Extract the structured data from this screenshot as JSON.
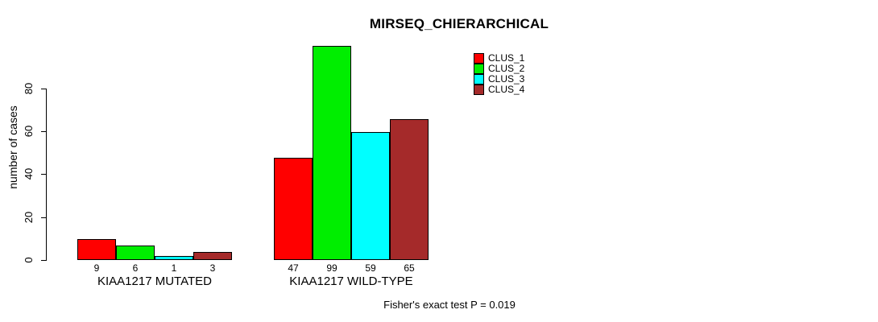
{
  "title": "MIRSEQ_CHIERARCHICAL",
  "footer": "Fisher's exact test P = 0.019",
  "chart_data": {
    "type": "bar",
    "title": "MIRSEQ_CHIERARCHICAL",
    "ylabel": "number of cases",
    "xlabel": "",
    "yticks": [
      0,
      20,
      40,
      60,
      80
    ],
    "ylim": [
      0,
      100
    ],
    "grid": false,
    "legend_position": "top-right",
    "background": "#ffffff",
    "axis_color": "#000000",
    "series": [
      {
        "name": "CLUS_1",
        "color": "#ff0000"
      },
      {
        "name": "CLUS_2",
        "color": "#00ee00"
      },
      {
        "name": "CLUS_3",
        "color": "#00ffff"
      },
      {
        "name": "CLUS_4",
        "color": "#a52a2a"
      }
    ],
    "groups": [
      {
        "label": "KIAA1217 MUTATED",
        "values": [
          9,
          6,
          1,
          3
        ]
      },
      {
        "label": "KIAA1217 WILD-TYPE",
        "values": [
          47,
          99,
          59,
          65
        ]
      }
    ],
    "annotation": "Fisher's exact test P = 0.019"
  }
}
